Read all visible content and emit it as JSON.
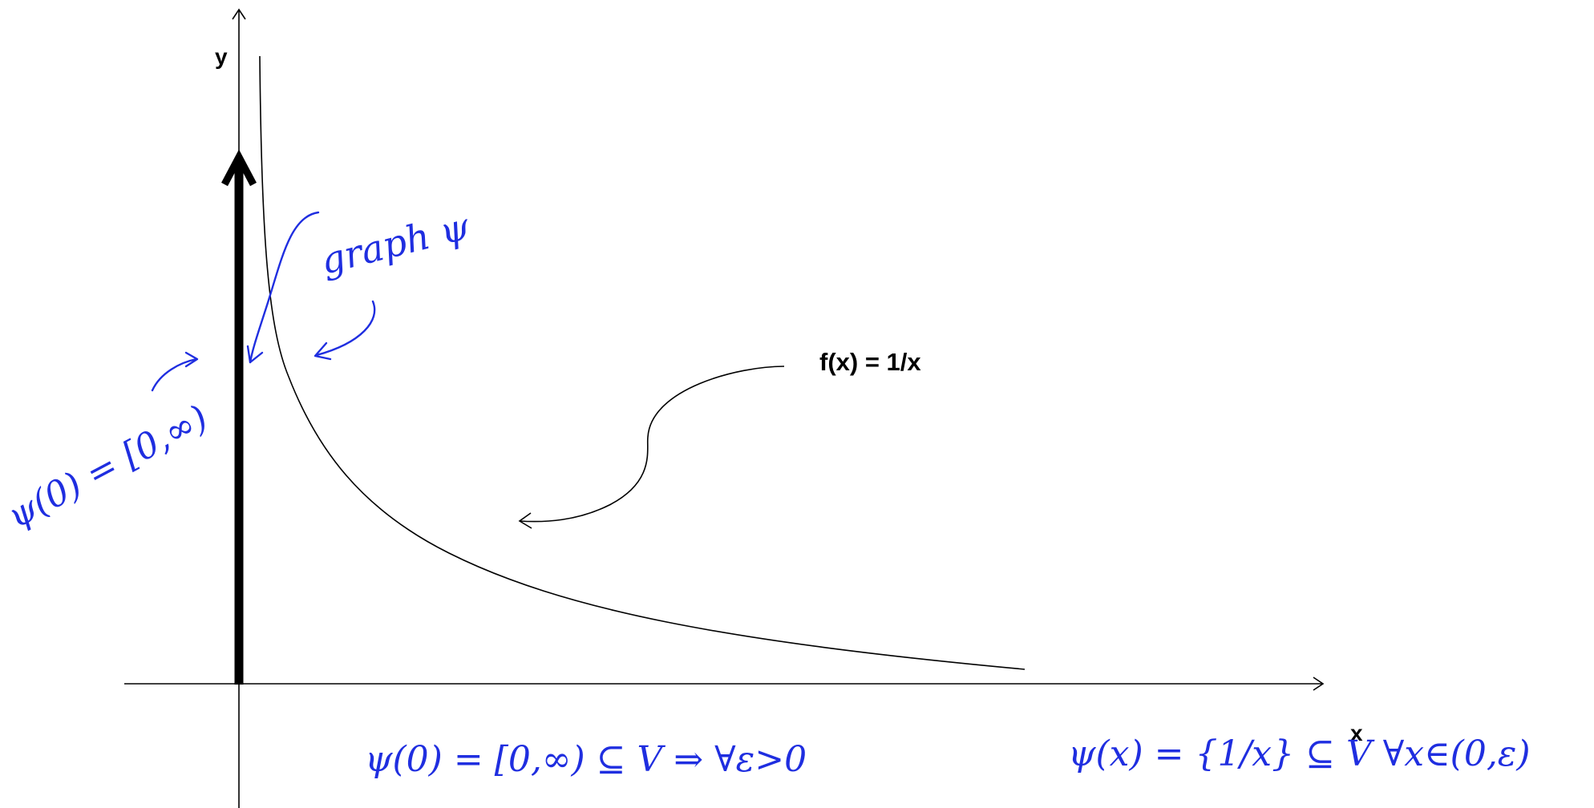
{
  "labels": {
    "x_axis": "x",
    "y_axis": "y",
    "function_label": "f(x) = 1/x"
  },
  "annotations": {
    "graph_psi": "graph ψ",
    "psi_zero": "ψ(0) = [0,∞)",
    "bottom_statement_1": "ψ(0) = [0,∞) ⊆ V ⇒ ∀ε>0",
    "bottom_statement_2": "ψ(x) = {1/x} ⊆ V ∀x∈(0,ε)"
  },
  "colors": {
    "ink": "#1f2ee0",
    "curve": "#000000",
    "background": "#ffffff"
  }
}
